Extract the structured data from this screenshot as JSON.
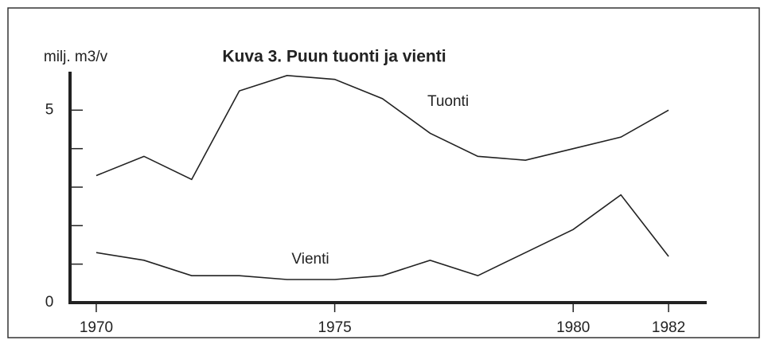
{
  "chart_data": {
    "type": "line",
    "title": "Kuva 3. Puun tuonti ja vienti",
    "y_label": "milj. m3/v",
    "x": [
      1970,
      1971,
      1972,
      1973,
      1974,
      1975,
      1976,
      1977,
      1978,
      1979,
      1980,
      1981,
      1982
    ],
    "series": [
      {
        "name": "Tuonti",
        "color": "#222222",
        "values": [
          3.3,
          3.8,
          3.2,
          5.5,
          5.9,
          5.8,
          5.3,
          4.4,
          3.8,
          3.7,
          4.0,
          4.3,
          5.0
        ]
      },
      {
        "name": "Vienti",
        "color": "#222222",
        "values": [
          1.3,
          1.1,
          0.7,
          0.7,
          0.6,
          0.6,
          0.7,
          1.1,
          0.7,
          1.3,
          1.9,
          2.8,
          1.2
        ]
      }
    ],
    "xlim": [
      1969.45,
      1982.8
    ],
    "xticks": [
      1970,
      1975,
      1980,
      1982
    ],
    "ylim": [
      0,
      6
    ],
    "yticks": [
      0,
      5
    ],
    "yminorticks": [
      1,
      2,
      3,
      4
    ],
    "grid": false
  }
}
